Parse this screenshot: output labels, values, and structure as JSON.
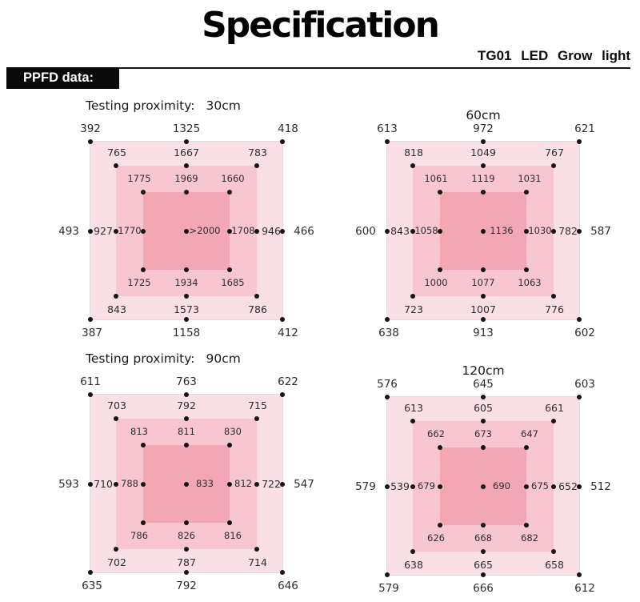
{
  "header": {
    "title": "Specification",
    "subtitle": "TG01  LED  Grow  light",
    "section_label": "PPFD data:"
  },
  "colors": {
    "outer_square": "#fbdfe6",
    "middle_square": "#f8c6d0",
    "inner_square": "#f3a7b5",
    "dot": "#151515"
  },
  "diagrams": [
    {
      "id": "30cm",
      "title_label": "Testing proximity:",
      "title_value": "30cm",
      "rows": {
        "outer_top": [
          "392",
          "1325",
          "418"
        ],
        "ring2_top": [
          "765",
          "1667",
          "783"
        ],
        "inner_top": [
          "1775",
          "1969",
          "1660"
        ],
        "middle": [
          "493",
          "927",
          "1770",
          ">2000",
          "1708",
          "946",
          "466"
        ],
        "inner_bottom": [
          "1725",
          "1934",
          "1685"
        ],
        "ring2_bottom": [
          "843",
          "1573",
          "786"
        ],
        "outer_bottom": [
          "387",
          "1158",
          "412"
        ]
      }
    },
    {
      "id": "60cm",
      "title_label": "",
      "title_value": "60cm",
      "rows": {
        "outer_top": [
          "613",
          "972",
          "621"
        ],
        "ring2_top": [
          "818",
          "1049",
          "767"
        ],
        "inner_top": [
          "1061",
          "1119",
          "1031"
        ],
        "middle": [
          "600",
          "843",
          "1058",
          "1136",
          "1030",
          "782",
          "587"
        ],
        "inner_bottom": [
          "1000",
          "1077",
          "1063"
        ],
        "ring2_bottom": [
          "723",
          "1007",
          "776"
        ],
        "outer_bottom": [
          "638",
          "913",
          "602"
        ]
      }
    },
    {
      "id": "90cm",
      "title_label": "Testing proximity:",
      "title_value": "90cm",
      "rows": {
        "outer_top": [
          "611",
          "763",
          "622"
        ],
        "ring2_top": [
          "703",
          "792",
          "715"
        ],
        "inner_top": [
          "813",
          "811",
          "830"
        ],
        "middle": [
          "593",
          "710",
          "788",
          "833",
          "812",
          "722",
          "547"
        ],
        "inner_bottom": [
          "786",
          "826",
          "816"
        ],
        "ring2_bottom": [
          "702",
          "787",
          "714"
        ],
        "outer_bottom": [
          "635",
          "792",
          "646"
        ]
      }
    },
    {
      "id": "120cm",
      "title_label": "",
      "title_value": "120cm",
      "rows": {
        "outer_top": [
          "576",
          "645",
          "603"
        ],
        "ring2_top": [
          "613",
          "605",
          "661"
        ],
        "inner_top": [
          "662",
          "673",
          "647"
        ],
        "middle": [
          "579",
          "539",
          "679",
          "690",
          "675",
          "652",
          "512"
        ],
        "inner_bottom": [
          "626",
          "668",
          "682"
        ],
        "ring2_bottom": [
          "638",
          "665",
          "658"
        ],
        "outer_bottom": [
          "579",
          "666",
          "612"
        ]
      }
    }
  ]
}
